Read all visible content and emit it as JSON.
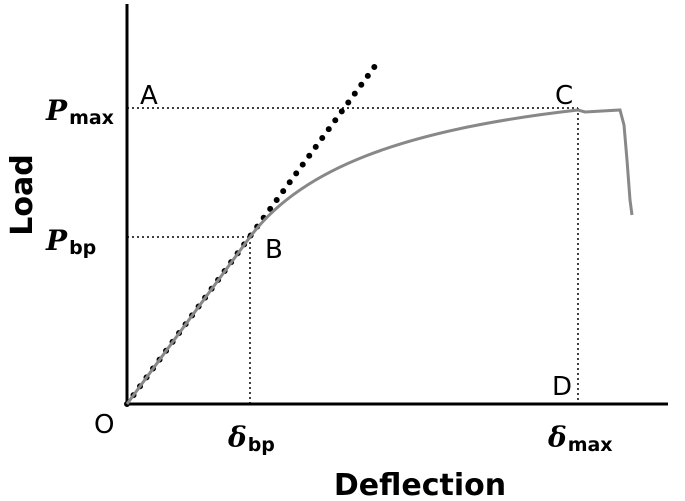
{
  "axes": {
    "y_label": "Load",
    "x_label": "Deflection"
  },
  "points": {
    "A": "A",
    "B": "B",
    "C": "C",
    "D": "D",
    "O": "O"
  },
  "y_ticks": [
    {
      "symbol": "P",
      "subscript": "max"
    },
    {
      "symbol": "P",
      "subscript": "bp"
    }
  ],
  "x_ticks": [
    {
      "symbol": "δ",
      "subscript": "bp"
    },
    {
      "symbol": "δ",
      "subscript": "max"
    }
  ]
}
